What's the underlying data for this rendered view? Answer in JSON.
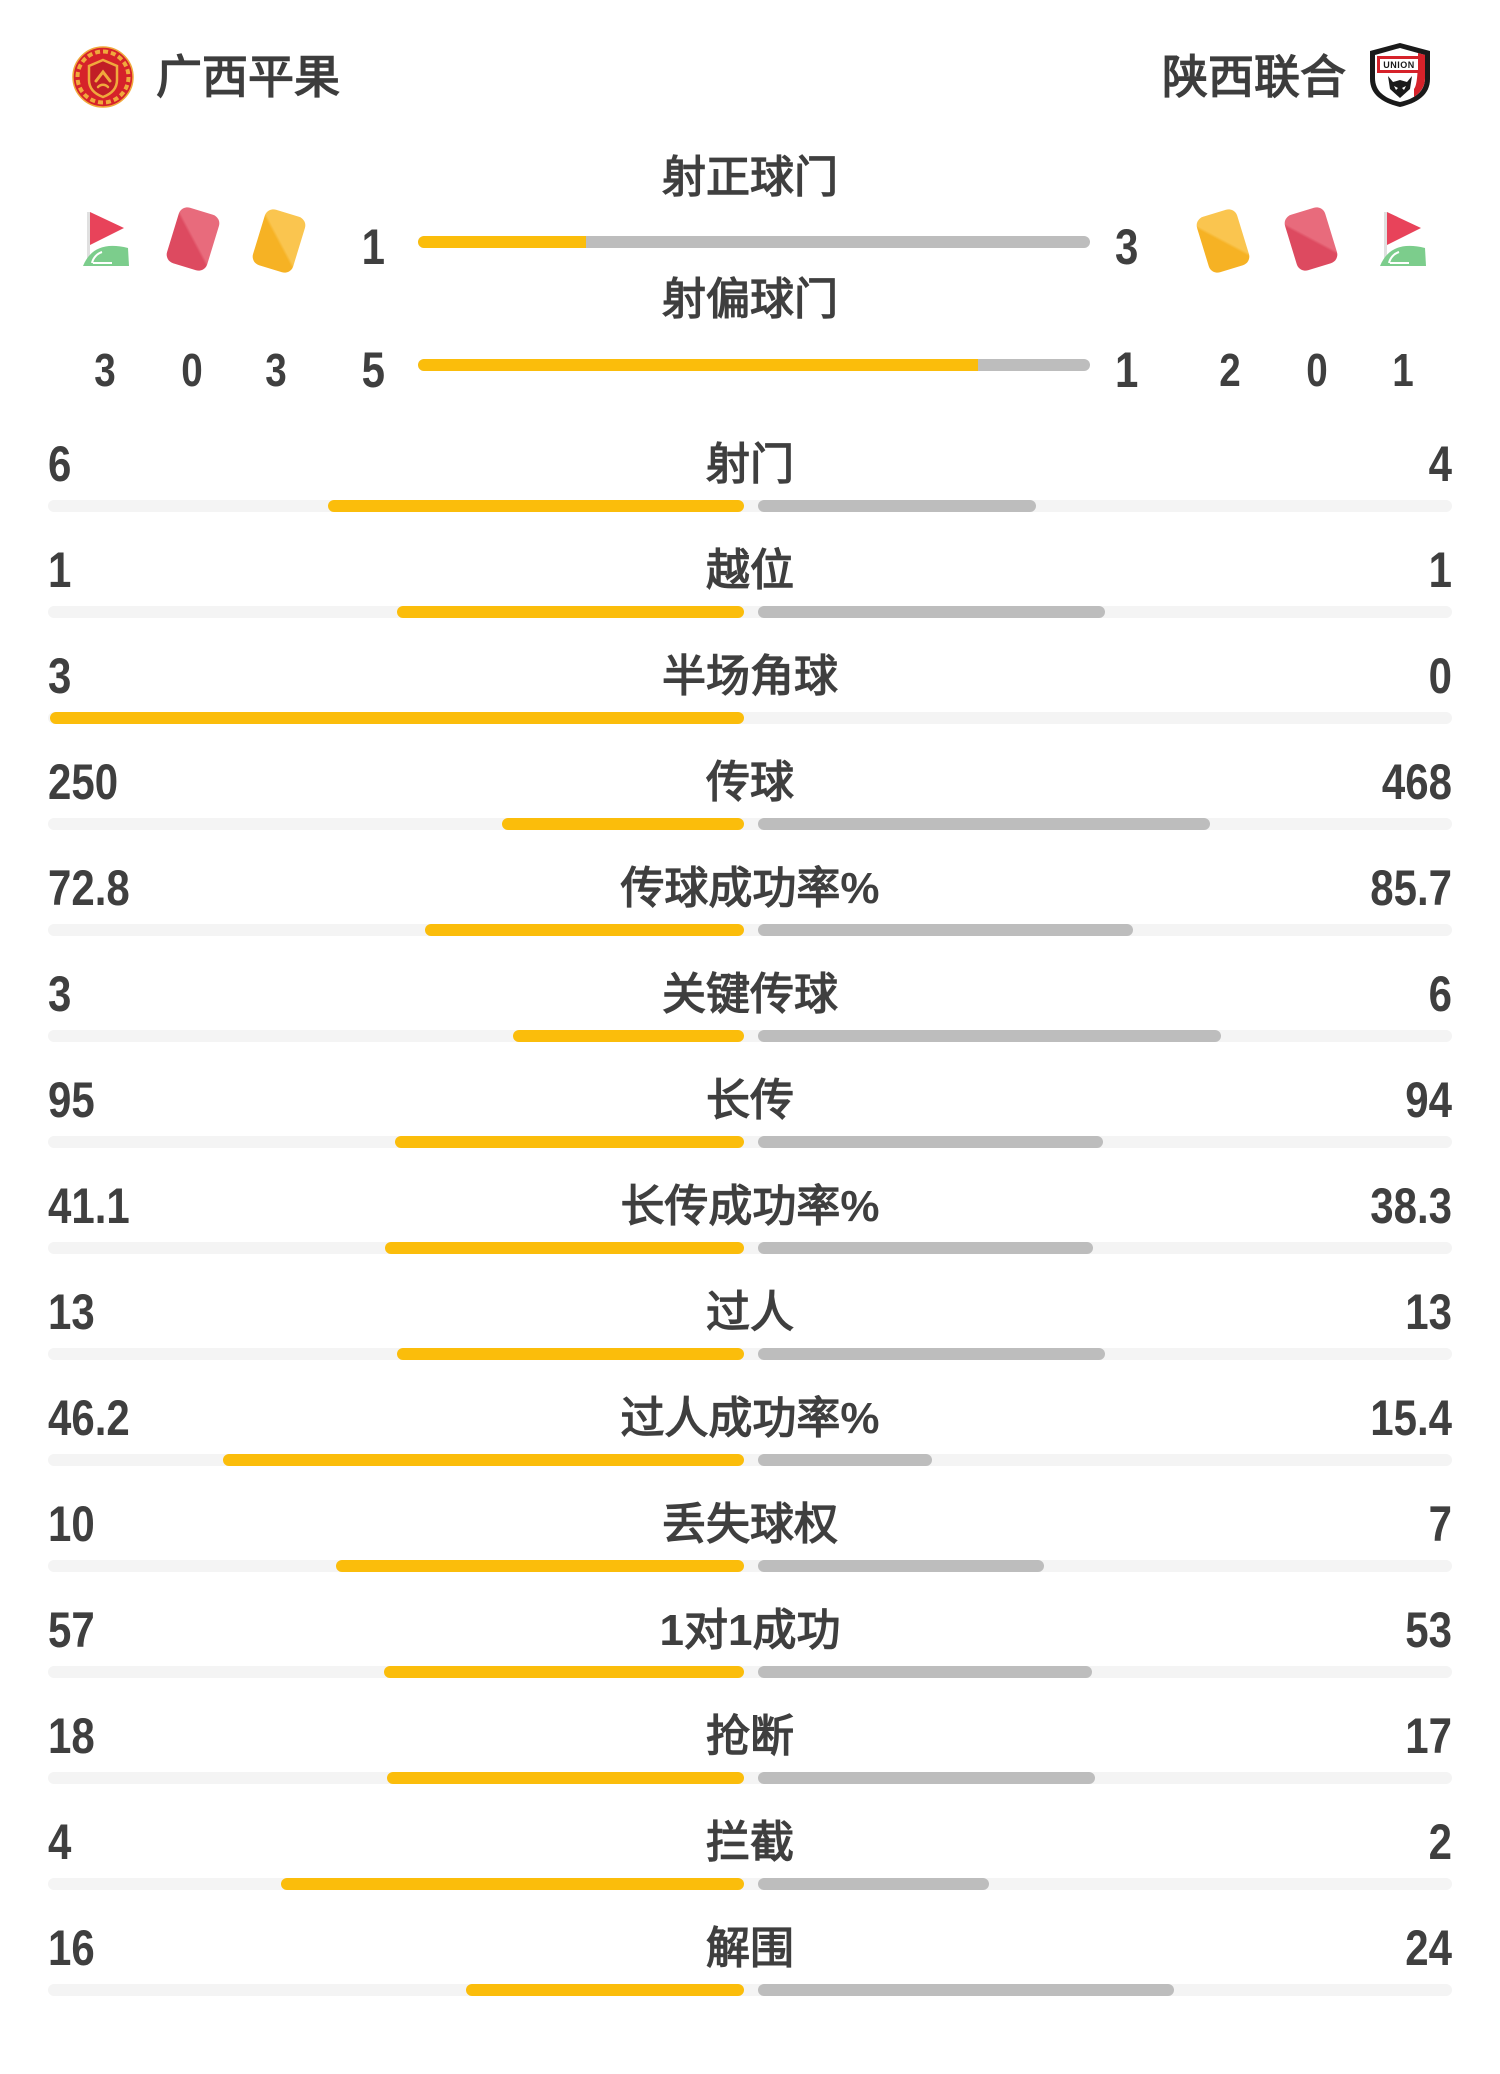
{
  "header": {
    "home": {
      "name": "广西平果"
    },
    "away": {
      "name": "陕西联合",
      "logo_text": "UNION"
    }
  },
  "discipline": {
    "home": {
      "corner_count": "3",
      "red_card_count": "0",
      "yellow_card_count": "3"
    },
    "away": {
      "yellow_card_count": "2",
      "red_card_count": "0",
      "corner_count": "1"
    }
  },
  "chart_data": {
    "type": "bar",
    "layout": "mirrored-horizontal-duel",
    "categories": [
      "射正球门",
      "射偏球门",
      "射门",
      "越位",
      "半场角球",
      "传球",
      "传球成功率%",
      "关键传球",
      "长传",
      "长传成功率%",
      "过人",
      "过人成功率%",
      "丢失球权",
      "1对1成功",
      "抢断",
      "拦截",
      "解围"
    ],
    "series": [
      {
        "name": "广西平果",
        "color": "#fbbd0b",
        "values": [
          1,
          5,
          6,
          1,
          3,
          250,
          72.8,
          3,
          95,
          41.1,
          13,
          46.2,
          10,
          57,
          18,
          4,
          16
        ]
      },
      {
        "name": "陕西联合",
        "color": "#bdbdbd",
        "values": [
          3,
          1,
          4,
          1,
          0,
          468,
          85.7,
          6,
          94,
          38.3,
          13,
          15.4,
          7,
          53,
          17,
          2,
          24
        ]
      }
    ]
  },
  "colors": {
    "accent_yellow": "#fbbd0b",
    "bar_gray": "#bdbdbd",
    "track_gray": "#f4f4f4",
    "text": "#3f3f3f",
    "card_red": "#dd4a60",
    "card_yellow": "#f6b224",
    "flag_red": "#e8435a",
    "flag_green": "#7ccd8c",
    "home_logo_red": "#d6222a",
    "home_logo_gold": "#f0a93c"
  }
}
